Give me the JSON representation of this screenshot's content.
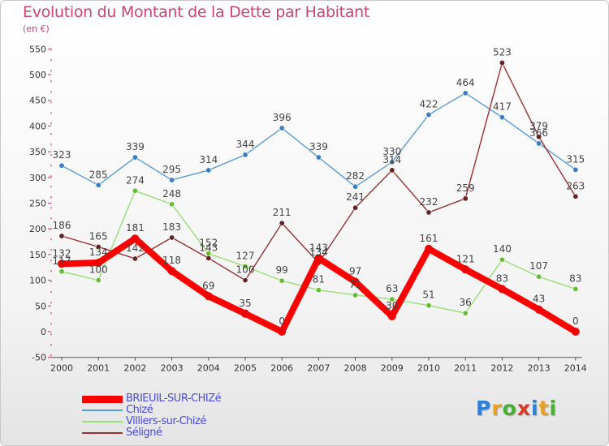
{
  "chart_data": {
    "type": "line",
    "title": "Evolution du Montant de la Dette par Habitant",
    "ylabel": "(en €)",
    "xlabel": "",
    "categories": [
      "2000",
      "2001",
      "2002",
      "2003",
      "2004",
      "2005",
      "2006",
      "2007",
      "2008",
      "2009",
      "2010",
      "2011",
      "2012",
      "2013",
      "2014"
    ],
    "yticks": [
      -50,
      0,
      50,
      100,
      150,
      200,
      250,
      300,
      350,
      400,
      450,
      500,
      550
    ],
    "ylim": [
      -50,
      550
    ],
    "grid": false,
    "series": [
      {
        "name": "Chizé",
        "color": "#5b9bd5",
        "point_color": "#3a7ec4",
        "values": [
          323,
          285,
          339,
          295,
          314,
          344,
          396,
          339,
          282,
          330,
          422,
          464,
          417,
          366,
          315
        ],
        "labels": [
          "323",
          "285",
          "339",
          "295",
          "314",
          "344",
          "396",
          "339",
          "282",
          "330",
          "422",
          "464",
          "417",
          "366",
          "315"
        ]
      },
      {
        "name": "Villiers-sur-Chizé",
        "color": "#99dd77",
        "point_color": "#66bb33",
        "values": [
          117,
          100,
          274,
          248,
          152,
          127,
          99,
          81,
          71,
          63,
          51,
          36,
          140,
          107,
          83
        ],
        "labels": [
          "117",
          "100",
          "274",
          "248",
          "152",
          "127",
          "99",
          "81",
          "71",
          "63",
          "51",
          "36",
          "140",
          "107",
          "83"
        ]
      },
      {
        "name": "Séligné",
        "color": "#993333",
        "point_color": "#662222",
        "values": [
          186,
          165,
          142,
          183,
          143,
          100,
          211,
          134,
          241,
          314,
          232,
          259,
          523,
          379,
          263
        ],
        "labels": [
          "186",
          "165",
          "142",
          "183",
          "143",
          "100",
          "211",
          "134",
          "241",
          "314",
          "232",
          "259",
          "523",
          "379",
          "263"
        ]
      },
      {
        "name": "BRIEUIL-SUR-CHIZé",
        "color": "#ff0000",
        "point_color": "#ee0000",
        "values": [
          132,
          134,
          181,
          118,
          69,
          35,
          0,
          143,
          97,
          30,
          161,
          121,
          83,
          43,
          0
        ],
        "labels": [
          "132",
          "134",
          "181",
          "118",
          "69",
          "35",
          "0",
          "143",
          "97",
          "30",
          "161",
          "121",
          "83",
          "43",
          "0"
        ]
      }
    ],
    "legend": {
      "position": "bottom-left",
      "entries": [
        "BRIEUIL-SUR-CHIZé",
        "Chizé",
        "Villiers-sur-Chizé",
        "Séligné"
      ],
      "colors": [
        "#ff0000",
        "#5b9bd5",
        "#99dd77",
        "#993333"
      ]
    }
  },
  "logo": {
    "letters": [
      "P",
      "r",
      "o",
      "x",
      "i",
      "t",
      "i"
    ],
    "colors": [
      "#2f7fd8",
      "#e8a020",
      "#48b030",
      "#d83a2a",
      "#2f7fd8",
      "#e8a020",
      "#48b030"
    ]
  }
}
